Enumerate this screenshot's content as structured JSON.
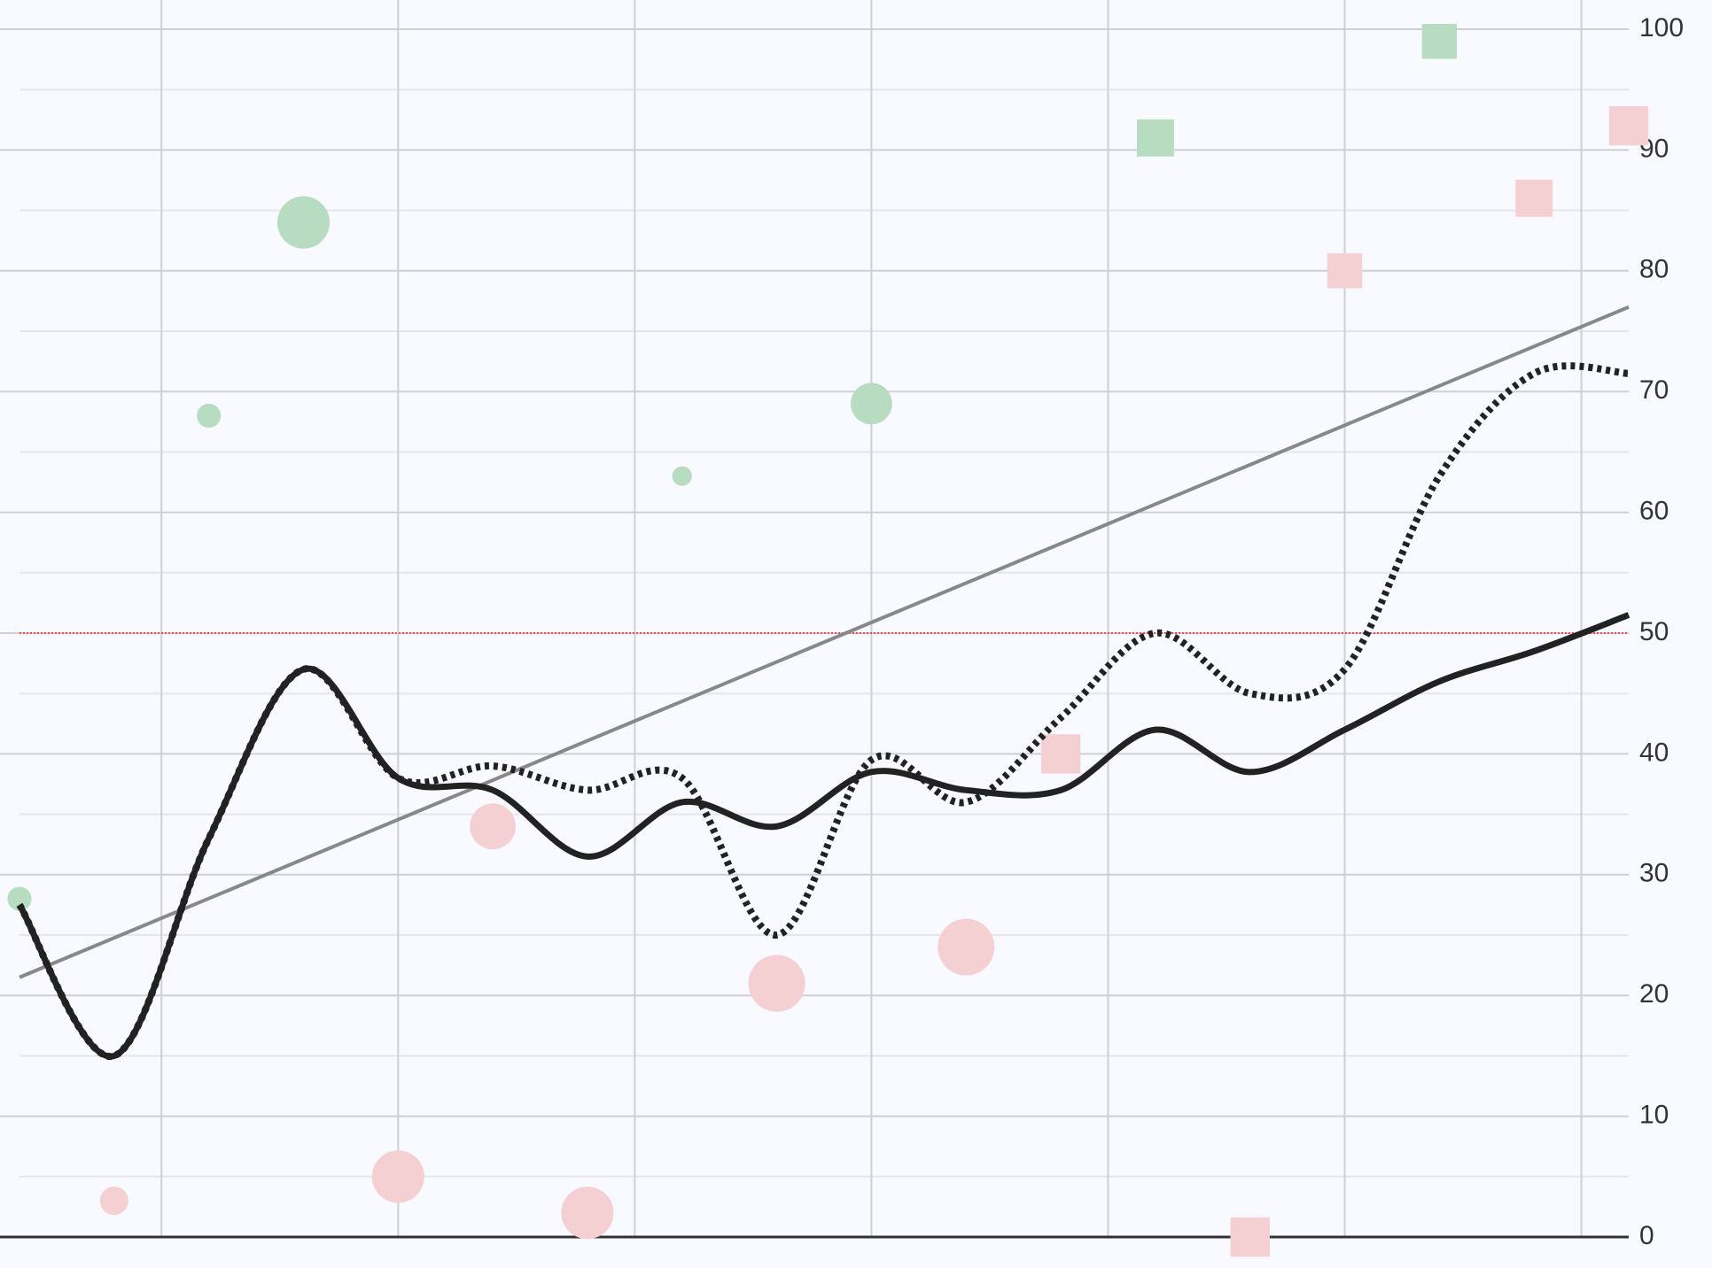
{
  "chart_data": {
    "type": "scatter",
    "x": [
      0,
      1,
      2,
      3,
      4,
      5,
      6,
      7,
      8,
      9,
      10,
      11,
      12,
      13,
      14,
      15,
      16,
      17
    ],
    "xlim": [
      0,
      17
    ],
    "xticks": [
      1.5,
      4,
      6.5,
      9,
      11.5,
      14,
      16.5
    ],
    "ylim": [
      0,
      100
    ],
    "yticks": [
      0,
      10,
      20,
      30,
      40,
      50,
      60,
      70,
      80,
      90,
      100
    ],
    "yminorticks": [
      5,
      15,
      25,
      35,
      45,
      55,
      65,
      75,
      85,
      95
    ],
    "grid": true,
    "y_axis_side": "right",
    "points": {
      "values": [
        28,
        3,
        68,
        84,
        5,
        34,
        2,
        63,
        21,
        69,
        24,
        40,
        91,
        0,
        80,
        99,
        86,
        92
      ],
      "sizes": [
        11,
        13,
        11,
        24,
        24,
        21,
        24,
        9,
        26,
        19,
        26,
        18,
        17,
        18,
        16,
        16,
        17,
        18
      ],
      "colors": [
        "#b8dcc0",
        "#f5d0d3",
        "#b8dcc0",
        "#b8dcc0",
        "#f5d0d3",
        "#f5d0d3",
        "#f5d0d3",
        "#b8dcc0",
        "#f5d0d3",
        "#b8dcc0",
        "#f5d0d3",
        "#f5d0d3",
        "#b8dcc0",
        "#f5d0d3",
        "#f5d0d3",
        "#b8dcc0",
        "#f5d0d3",
        "#f5d0d3"
      ],
      "shapes": [
        "circle",
        "circle",
        "circle",
        "circle",
        "circle",
        "circle",
        "circle",
        "circle",
        "circle",
        "circle",
        "circle",
        "square",
        "square",
        "square",
        "square",
        "square",
        "square",
        "square"
      ]
    },
    "lines": [
      {
        "color": "#222222",
        "style": "dotted",
        "values": [
          27.5,
          15,
          33,
          47,
          38,
          39,
          37,
          38,
          25,
          39.5,
          36,
          43,
          50,
          45,
          47,
          63,
          71.5,
          71.5
        ]
      },
      {
        "color": "#222222",
        "style": "solid",
        "values": [
          27.5,
          15,
          33,
          47,
          38,
          37,
          31.5,
          36,
          34,
          38.5,
          37,
          37,
          42,
          38.5,
          42,
          46,
          48.5,
          51.5
        ]
      }
    ],
    "trend": {
      "color": "#888888",
      "x": [
        0,
        17
      ],
      "values": [
        21.5,
        77
      ]
    },
    "reference": {
      "value": 50,
      "color": "#e05050"
    }
  }
}
